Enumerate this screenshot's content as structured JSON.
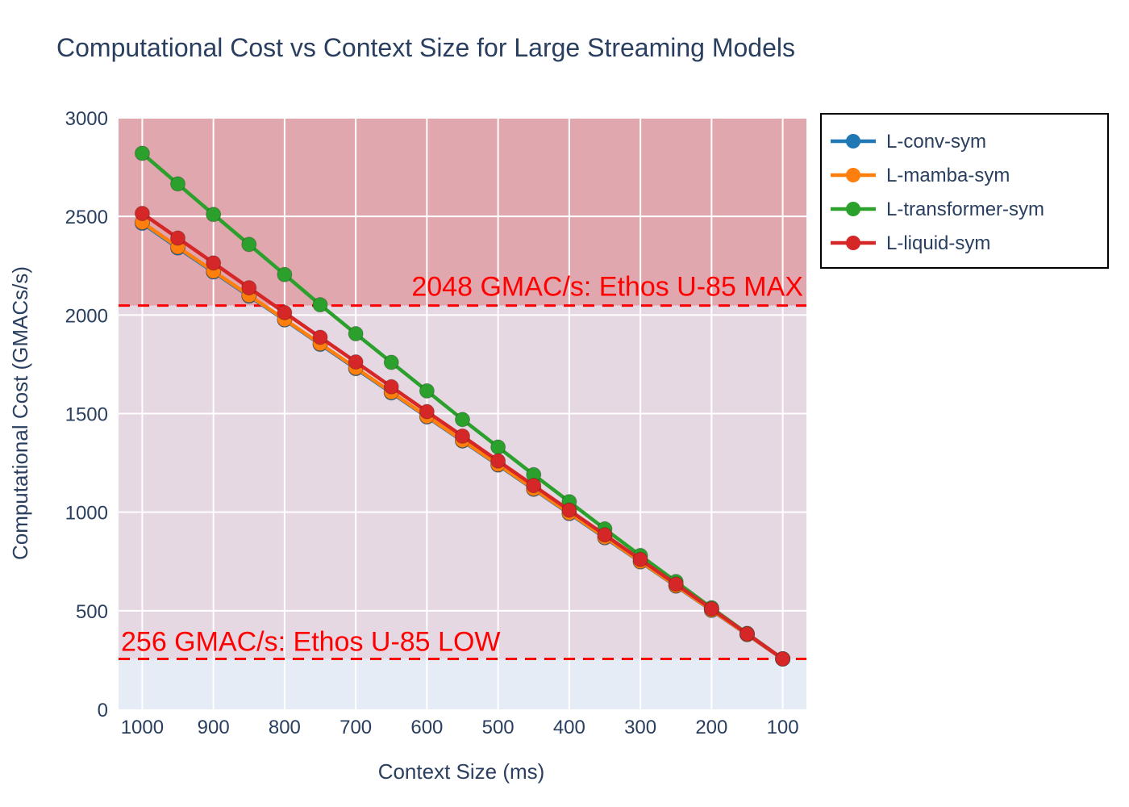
{
  "chart_data": {
    "type": "line",
    "title": "Computational Cost vs Context Size for Large Streaming Models",
    "xlabel": "Context Size (ms)",
    "ylabel": "Computational Cost (GMACs/s)",
    "x": [
      1000,
      950,
      900,
      850,
      800,
      750,
      700,
      650,
      600,
      550,
      500,
      450,
      400,
      350,
      300,
      250,
      200,
      150,
      100
    ],
    "x_reversed": true,
    "x_ticks": [
      "1000",
      "900",
      "800",
      "700",
      "600",
      "500",
      "400",
      "300",
      "200",
      "100"
    ],
    "ylim": [
      0,
      3000
    ],
    "y_ticks": [
      "0",
      "500",
      "1000",
      "1500",
      "2000",
      "2500",
      "3000"
    ],
    "grid": true,
    "legend_position": "top-right",
    "series": [
      {
        "name": "L-conv-sym",
        "color": "#1f77b4",
        "values": [
          2465,
          2340,
          2218,
          2096,
          1975,
          1851,
          1728,
          1605,
          1483,
          1361,
          1239,
          1116,
          993,
          870,
          748,
          625,
          502,
          379,
          256
        ]
      },
      {
        "name": "L-mamba-sym",
        "color": "#ff7f0e",
        "values": [
          2470,
          2345,
          2222,
          2100,
          1978,
          1855,
          1732,
          1609,
          1486,
          1364,
          1242,
          1119,
          996,
          873,
          750,
          627,
          504,
          380,
          256
        ]
      },
      {
        "name": "L-transformer-sym",
        "color": "#2ca02c",
        "values": [
          2820,
          2665,
          2510,
          2358,
          2205,
          2052,
          1905,
          1760,
          1615,
          1470,
          1330,
          1190,
          1053,
          915,
          780,
          648,
          515,
          385,
          256
        ]
      },
      {
        "name": "L-liquid-sym",
        "color": "#d62728",
        "values": [
          2515,
          2390,
          2264,
          2138,
          2012,
          1887,
          1762,
          1636,
          1510,
          1386,
          1260,
          1135,
          1010,
          885,
          760,
          635,
          510,
          383,
          256
        ]
      }
    ],
    "bands": [
      {
        "from": 2048,
        "to": 3000,
        "color": "#d62728",
        "opacity": 0.35
      },
      {
        "from": 256,
        "to": 2048,
        "color": "#e8b4c0",
        "opacity": 0.35
      }
    ],
    "thresholds": [
      {
        "value": 2048,
        "label": "2048 GMAC/s: Ethos U-85 MAX",
        "color": "#ff0000"
      },
      {
        "value": 256,
        "label": "256 GMAC/s: Ethos U-85 LOW",
        "color": "#ff0000"
      }
    ],
    "plot_background": "#e5ecf6"
  }
}
